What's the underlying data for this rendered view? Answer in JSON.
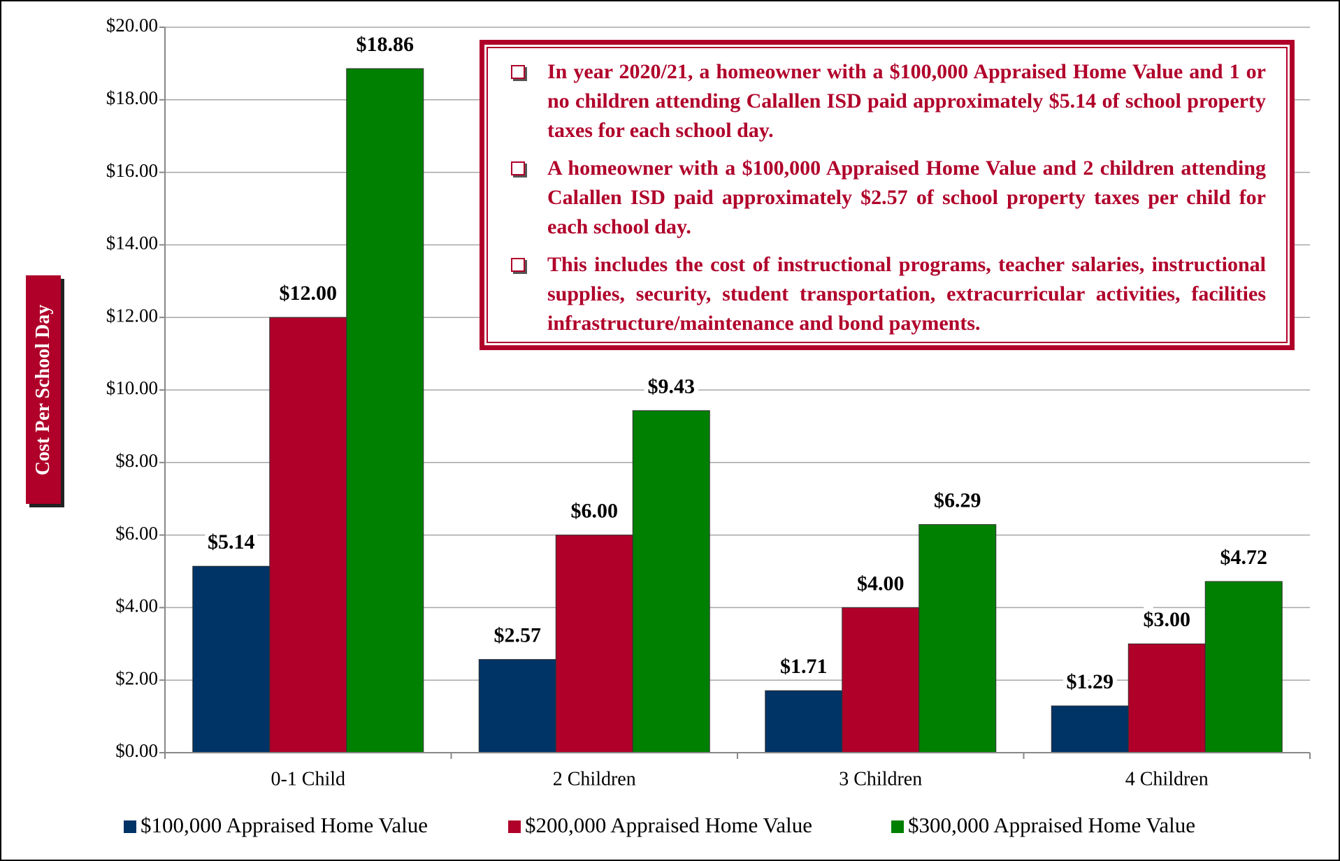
{
  "chart_data": {
    "type": "bar",
    "y_label": "Cost Per School Day",
    "categories": [
      "0-1 Child",
      "2 Children",
      "3 Children",
      "4 Children"
    ],
    "series": [
      {
        "name": "$100,000 Appraised Home Value",
        "color": "#003366",
        "values": [
          5.14,
          2.57,
          1.71,
          1.29
        ],
        "value_labels": [
          "$5.14",
          "$2.57",
          "$1.71",
          "$1.29"
        ]
      },
      {
        "name": "$200,000 Appraised Home Value",
        "color": "#b0002a",
        "values": [
          12.0,
          6.0,
          4.0,
          3.0
        ],
        "value_labels": [
          "$12.00",
          "$6.00",
          "$4.00",
          "$3.00"
        ]
      },
      {
        "name": "$300,000 Appraised Home Value",
        "color": "#008000",
        "values": [
          18.86,
          9.43,
          6.29,
          4.72
        ],
        "value_labels": [
          "$18.86",
          "$9.43",
          "$6.29",
          "$4.72"
        ]
      }
    ],
    "ylim": [
      0,
      20
    ],
    "yticks": [
      {
        "value": 0,
        "label": "$0.00"
      },
      {
        "value": 2,
        "label": "$2.00"
      },
      {
        "value": 4,
        "label": "$4.00"
      },
      {
        "value": 6,
        "label": "$6.00"
      },
      {
        "value": 8,
        "label": "$8.00"
      },
      {
        "value": 10,
        "label": "$10.00"
      },
      {
        "value": 12,
        "label": "$12.00"
      },
      {
        "value": 14,
        "label": "$14.00"
      },
      {
        "value": 16,
        "label": "$16.00"
      },
      {
        "value": 18,
        "label": "$18.00"
      },
      {
        "value": 20,
        "label": "$20.00"
      }
    ],
    "grid": true,
    "legend": "bottom",
    "annotations": [
      "In year 2020/21, a homeowner with a $100,000 Appraised Home Value and 1 or no children attending Calallen ISD paid approximately $5.14 of school property taxes for each school day.",
      "A homeowner with a $100,000 Appraised Home Value and 2 children attending Calallen ISD paid approximately $2.57 of school property taxes per child for each school day.",
      "This includes the cost of instructional programs, teacher salaries, instructional supplies, security, student transportation, extracurricular activities, facilities infrastructure/maintenance and bond payments."
    ]
  }
}
